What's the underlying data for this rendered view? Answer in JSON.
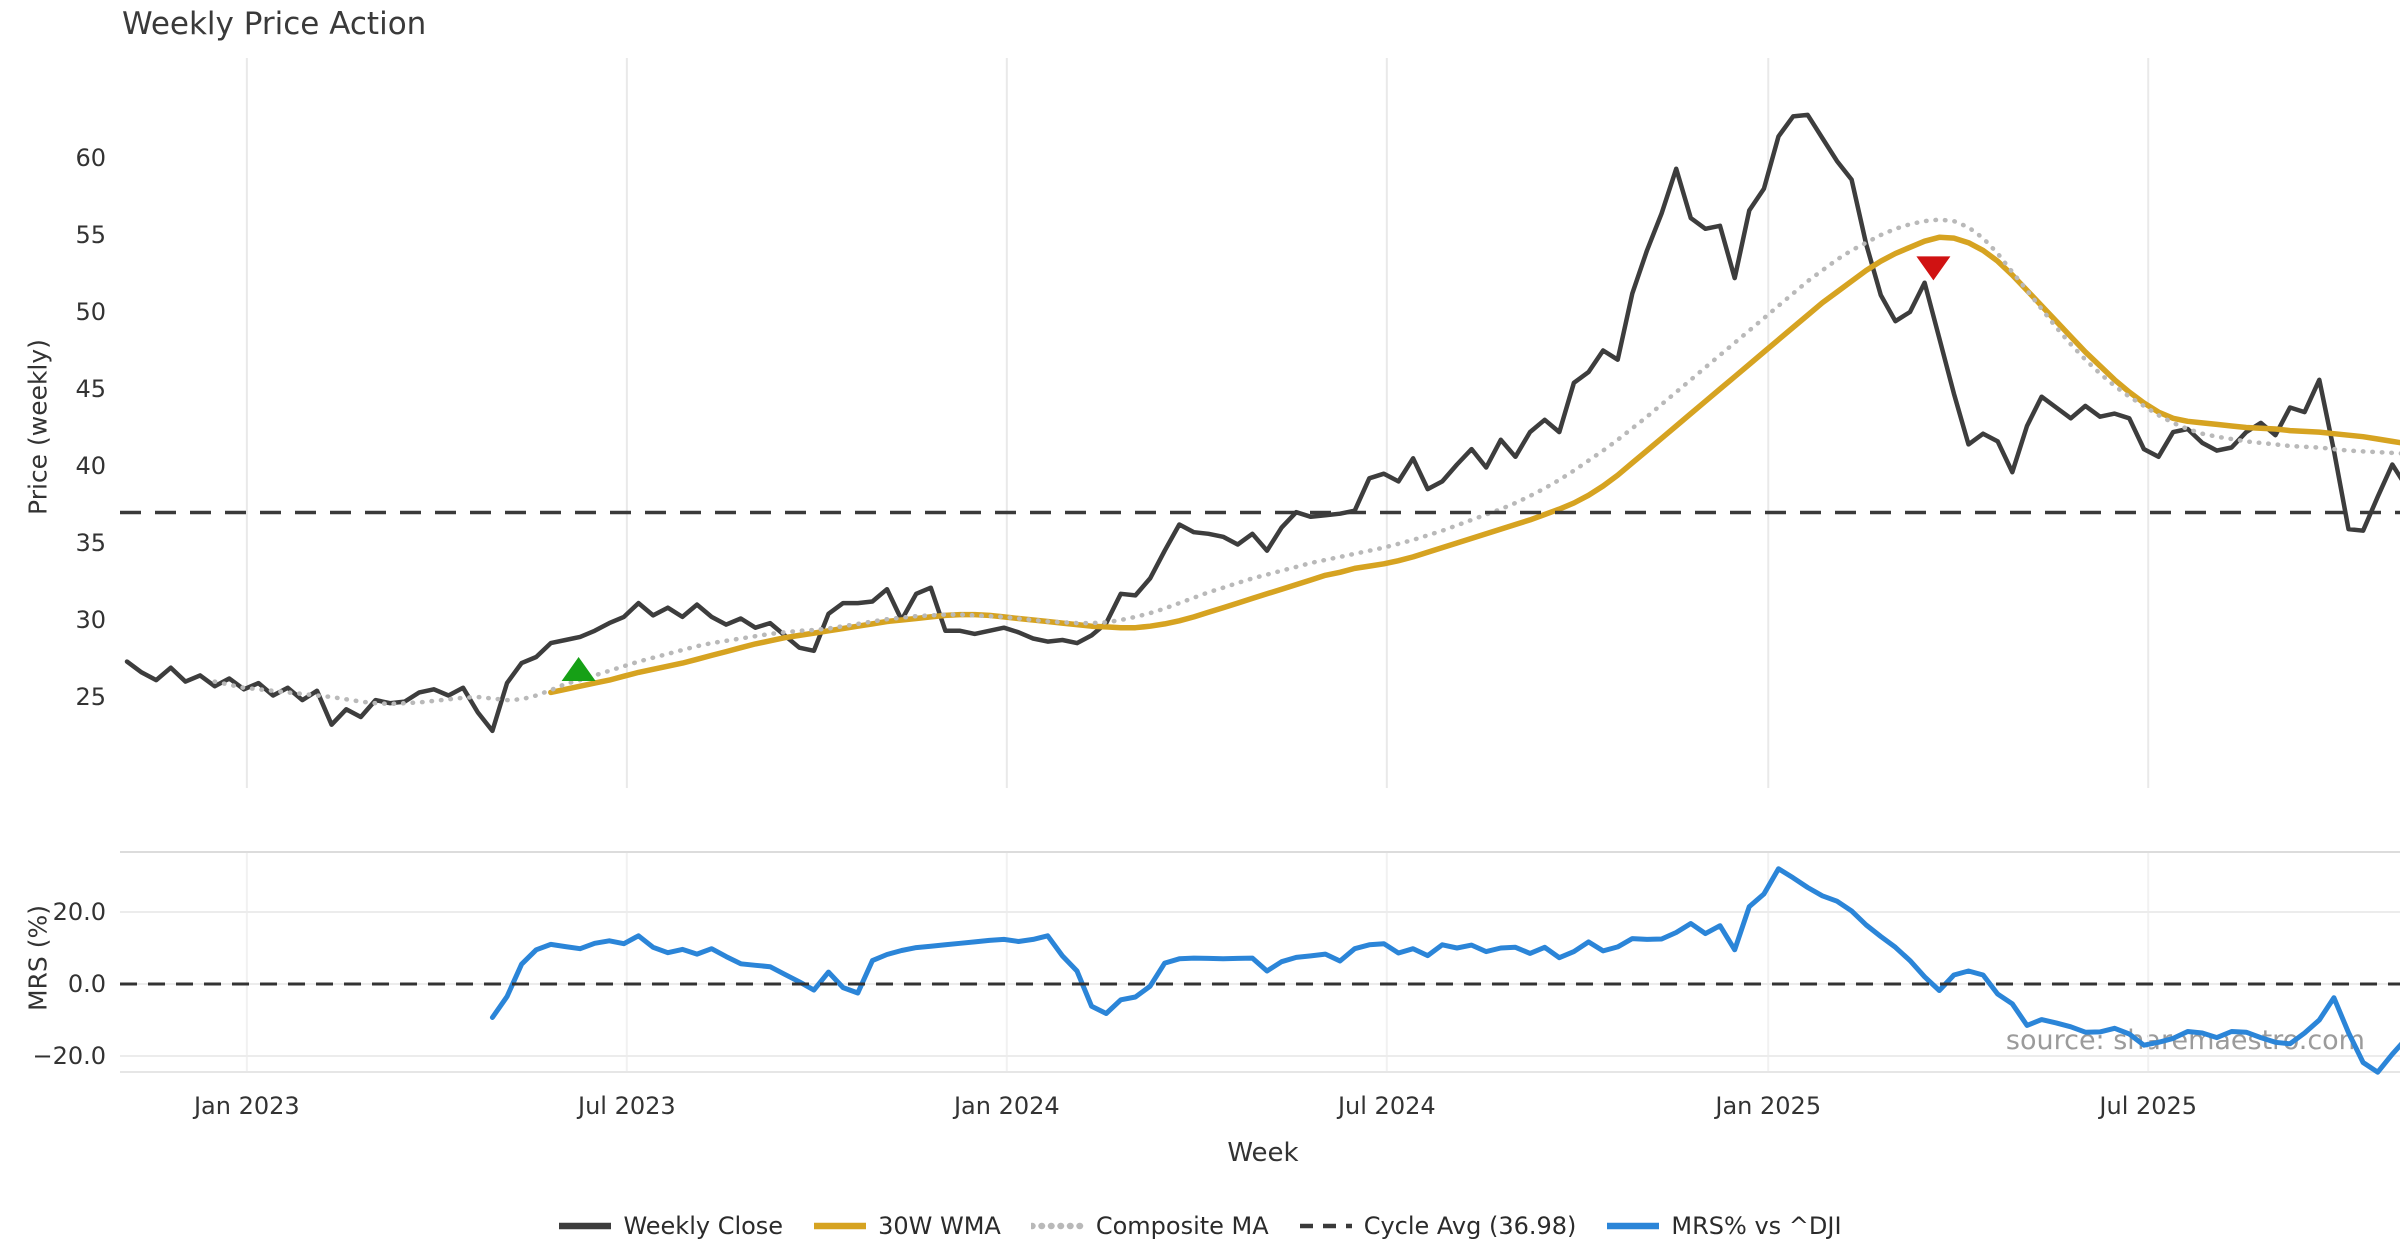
{
  "title": "Weekly Price Action",
  "watermark": "source: sharemaestro.com",
  "colors": {
    "close": "#3d3d3d",
    "wma": "#d6a321",
    "composite": "#b9b9b9",
    "cycle": "#3a3a3a",
    "mrs": "#2b85d8",
    "buy_marker": "#16a016",
    "sell_marker": "#d01212",
    "grid": "#e9e9e9",
    "panel_border": "#dcdcdc",
    "text": "#333333"
  },
  "legend": [
    {
      "label": "Weekly Close",
      "color": "#3d3d3d",
      "style": "solid"
    },
    {
      "label": "30W WMA",
      "color": "#d6a321",
      "style": "solid"
    },
    {
      "label": "Composite MA",
      "color": "#b9b9b9",
      "style": "dotted"
    },
    {
      "label": "Cycle Avg (36.98)",
      "color": "#3a3a3a",
      "style": "dashed"
    },
    {
      "label": "MRS% vs ^DJI",
      "color": "#2b85d8",
      "style": "solid"
    }
  ],
  "chart_data": {
    "type": "line",
    "title": "Weekly Price Action",
    "xlabel": "Week",
    "x_unit": "week",
    "grid": "vertical-only on price panel, horizontal+vertical on MRS panel",
    "x_ticks": [
      {
        "label": "Jan 2023",
        "week": 8.2
      },
      {
        "label": "Jul 2023",
        "week": 34.2
      },
      {
        "label": "Jan 2024",
        "week": 60.2
      },
      {
        "label": "Jul 2024",
        "week": 86.2
      },
      {
        "label": "Jan 2025",
        "week": 112.3
      },
      {
        "label": "Jul 2025",
        "week": 138.3
      }
    ],
    "panels": [
      {
        "id": "price",
        "ylabel": "Price (weekly)",
        "yticks": [
          25,
          30,
          35,
          40,
          45,
          50,
          55,
          60
        ],
        "ytick_labels": [
          "25",
          "30",
          "35",
          "40",
          "45",
          "50",
          "55",
          "60"
        ],
        "ylim": [
          19.0,
          66.5
        ]
      },
      {
        "id": "mrs",
        "ylabel": "MRS (%)",
        "yticks": [
          -20,
          0,
          20
        ],
        "ytick_labels": [
          "−20.0",
          "0.0",
          "20.0"
        ],
        "ylim": [
          -26.5,
          36.7
        ]
      }
    ],
    "cycle_avg": 36.98,
    "series": [
      {
        "name": "Weekly Close",
        "panel": "price",
        "color": "#3d3d3d",
        "style": "solid",
        "width": 4.5,
        "start_week": 0,
        "values": [
          27.3,
          26.6,
          26.1,
          26.9,
          26.0,
          26.4,
          25.7,
          26.2,
          25.5,
          25.9,
          25.1,
          25.6,
          24.8,
          25.4,
          23.2,
          24.2,
          23.7,
          24.8,
          24.6,
          24.7,
          25.3,
          25.5,
          25.1,
          25.6,
          24.0,
          22.8,
          25.9,
          27.2,
          27.6,
          28.5,
          28.7,
          28.9,
          29.3,
          29.8,
          30.2,
          31.1,
          30.3,
          30.8,
          30.2,
          31.0,
          30.2,
          29.7,
          30.1,
          29.5,
          29.8,
          29.0,
          28.2,
          28.0,
          30.4,
          31.1,
          31.1,
          31.2,
          32.0,
          30.0,
          31.7,
          32.1,
          29.3,
          29.3,
          29.1,
          29.3,
          29.5,
          29.2,
          28.8,
          28.6,
          28.7,
          28.5,
          29.0,
          29.8,
          31.7,
          31.6,
          32.7,
          34.5,
          36.2,
          35.7,
          35.6,
          35.4,
          34.9,
          35.6,
          34.5,
          36.0,
          37.0,
          36.7,
          36.8,
          36.9,
          37.1,
          39.2,
          39.5,
          39.0,
          40.5,
          38.5,
          39.0,
          40.1,
          41.1,
          39.9,
          41.7,
          40.6,
          42.2,
          43.0,
          42.2,
          45.4,
          46.1,
          47.5,
          46.9,
          51.2,
          54.0,
          56.4,
          59.3,
          56.1,
          55.4,
          55.6,
          52.2,
          56.6,
          58.0,
          61.4,
          62.7,
          62.8,
          61.3,
          59.8,
          58.6,
          54.4,
          51.1,
          49.4,
          50.0,
          51.9,
          48.3,
          44.7,
          41.4,
          42.1,
          41.6,
          39.6,
          42.6,
          44.5,
          43.8,
          43.1,
          43.9,
          43.2,
          43.4,
          43.1,
          41.1,
          40.6,
          42.2,
          42.4,
          41.5,
          41.0,
          41.2,
          42.2,
          42.8,
          42.0,
          43.8,
          43.5,
          45.6,
          41.0,
          35.9,
          35.8,
          38.0,
          40.1,
          38.6
        ]
      },
      {
        "name": "30W WMA",
        "panel": "price",
        "color": "#d6a321",
        "style": "solid",
        "width": 5.5,
        "start_week": 29,
        "values": [
          25.3,
          25.5,
          25.7,
          25.9,
          26.1,
          26.35,
          26.6,
          26.8,
          27.0,
          27.2,
          27.45,
          27.7,
          27.95,
          28.2,
          28.45,
          28.65,
          28.85,
          29.0,
          29.15,
          29.3,
          29.45,
          29.6,
          29.75,
          29.9,
          30.0,
          30.1,
          30.2,
          30.3,
          30.35,
          30.35,
          30.3,
          30.2,
          30.1,
          30.0,
          29.9,
          29.8,
          29.7,
          29.6,
          29.55,
          29.5,
          29.5,
          29.6,
          29.75,
          29.95,
          30.2,
          30.5,
          30.8,
          31.1,
          31.4,
          31.7,
          32.0,
          32.3,
          32.6,
          32.9,
          33.1,
          33.35,
          33.5,
          33.65,
          33.85,
          34.1,
          34.4,
          34.7,
          35.0,
          35.3,
          35.6,
          35.9,
          36.2,
          36.5,
          36.85,
          37.2,
          37.6,
          38.1,
          38.7,
          39.4,
          40.2,
          41.0,
          41.8,
          42.6,
          43.4,
          44.2,
          45.0,
          45.8,
          46.6,
          47.4,
          48.2,
          49.0,
          49.8,
          50.6,
          51.3,
          52.0,
          52.7,
          53.3,
          53.8,
          54.2,
          54.6,
          54.85,
          54.8,
          54.5,
          54.0,
          53.3,
          52.4,
          51.4,
          50.4,
          49.4,
          48.4,
          47.4,
          46.5,
          45.6,
          44.8,
          44.1,
          43.5,
          43.1,
          42.9,
          42.8,
          42.7,
          42.6,
          42.5,
          42.45,
          42.4,
          42.3,
          42.25,
          42.2,
          42.1,
          42.0,
          41.9,
          41.75,
          41.6,
          41.45
        ]
      },
      {
        "name": "Composite MA",
        "panel": "price",
        "color": "#b9b9b9",
        "style": "dotted",
        "width": 4.5,
        "start_week": 6,
        "values": [
          26.0,
          25.8,
          25.6,
          25.5,
          25.4,
          25.3,
          25.2,
          25.1,
          25.0,
          24.85,
          24.7,
          24.6,
          24.55,
          24.6,
          24.65,
          24.75,
          24.85,
          24.95,
          25.0,
          24.9,
          24.8,
          24.85,
          25.1,
          25.45,
          25.85,
          26.1,
          26.4,
          26.7,
          27.0,
          27.3,
          27.55,
          27.8,
          28.05,
          28.3,
          28.5,
          28.65,
          28.8,
          28.95,
          29.1,
          29.2,
          29.3,
          29.35,
          29.45,
          29.6,
          29.75,
          29.9,
          30.05,
          30.15,
          30.25,
          30.3,
          30.35,
          30.35,
          30.3,
          30.25,
          30.2,
          30.1,
          30.0,
          29.9,
          29.85,
          29.8,
          29.8,
          29.85,
          30.0,
          30.2,
          30.45,
          30.75,
          31.1,
          31.45,
          31.8,
          32.1,
          32.4,
          32.7,
          32.95,
          33.2,
          33.45,
          33.7,
          33.9,
          34.1,
          34.3,
          34.5,
          34.7,
          34.95,
          35.2,
          35.5,
          35.8,
          36.15,
          36.5,
          36.85,
          37.2,
          37.6,
          38.05,
          38.55,
          39.1,
          39.7,
          40.35,
          41.0,
          41.7,
          42.45,
          43.2,
          44.0,
          44.8,
          45.6,
          46.4,
          47.2,
          48.0,
          48.8,
          49.6,
          50.4,
          51.2,
          52.0,
          52.7,
          53.4,
          54.0,
          54.5,
          55.0,
          55.4,
          55.7,
          55.9,
          56.0,
          55.9,
          55.5,
          54.8,
          53.8,
          52.6,
          51.4,
          50.2,
          49.0,
          47.9,
          46.9,
          46.0,
          45.2,
          44.5,
          43.9,
          43.3,
          42.8,
          42.4,
          42.1,
          41.9,
          41.75,
          41.6,
          41.5,
          41.4,
          41.3,
          41.25,
          41.2,
          41.1,
          41.0,
          40.95,
          40.9,
          40.85,
          40.8
        ]
      },
      {
        "name": "Cycle Avg (36.98)",
        "panel": "price",
        "color": "#3a3a3a",
        "style": "dashed",
        "width": 3.5,
        "type": "hline",
        "value": 36.98
      },
      {
        "name": "MRS% vs ^DJI",
        "panel": "mrs",
        "color": "#2b85d8",
        "style": "solid",
        "width": 5,
        "start_week": 25,
        "values": [
          -9.3,
          -3.5,
          5.5,
          9.5,
          11.0,
          10.4,
          9.8,
          11.3,
          12.0,
          11.2,
          13.4,
          10.2,
          8.7,
          9.6,
          8.3,
          9.8,
          7.6,
          5.6,
          5.2,
          4.8,
          2.7,
          0.6,
          -1.7,
          3.3,
          -1.0,
          -2.5,
          6.5,
          8.2,
          9.3,
          10.1,
          10.5,
          10.9,
          11.3,
          11.7,
          12.1,
          12.4,
          11.8,
          12.4,
          13.4,
          7.8,
          3.6,
          -6.2,
          -8.2,
          -4.4,
          -3.6,
          -0.6,
          5.8,
          7.0,
          7.2,
          7.1,
          7.0,
          7.1,
          7.2,
          3.6,
          6.2,
          7.4,
          7.8,
          8.3,
          6.4,
          9.8,
          10.9,
          11.2,
          8.6,
          9.8,
          7.9,
          10.9,
          10.0,
          10.8,
          9.0,
          10.0,
          10.2,
          8.5,
          10.2,
          7.3,
          9.0,
          11.7,
          9.2,
          10.3,
          12.6,
          12.4,
          12.5,
          14.3,
          16.8,
          14.0,
          16.2,
          9.5,
          21.5,
          25.0,
          32.0,
          29.5,
          26.8,
          24.5,
          23.0,
          20.3,
          16.4,
          13.2,
          10.2,
          6.5,
          2.0,
          -1.8,
          2.5,
          3.6,
          2.5,
          -2.8,
          -5.5,
          -11.5,
          -9.9,
          -10.8,
          -11.9,
          -13.4,
          -13.3,
          -12.3,
          -13.9,
          -17.0,
          -16.2,
          -15.1,
          -13.2,
          -13.6,
          -14.9,
          -13.2,
          -13.4,
          -14.9,
          -16.2,
          -16.6,
          -13.6,
          -10.0,
          -3.8,
          -13.5,
          -21.8,
          -24.5,
          -19.5,
          -15.0
        ]
      },
      {
        "name": "zero-line",
        "panel": "mrs",
        "color": "#333333",
        "style": "dashed",
        "width": 3,
        "type": "hline",
        "value": 0
      }
    ],
    "markers": [
      {
        "type": "buy",
        "shape": "triangle-up",
        "color": "#16a016",
        "week": 30.9,
        "price": 26.75
      },
      {
        "type": "sell",
        "shape": "triangle-down",
        "color": "#d01212",
        "week": 123.6,
        "price": 52.9
      }
    ]
  }
}
